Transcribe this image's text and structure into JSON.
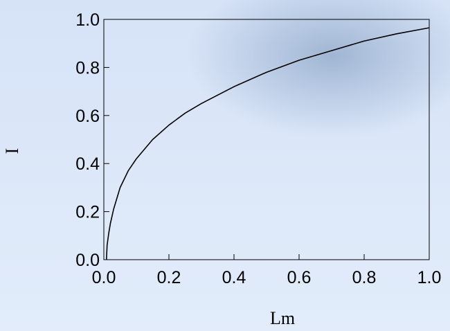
{
  "chart_data": {
    "type": "line",
    "x_label": "Lm",
    "y_label": "I",
    "x": [
      0.008,
      0.01,
      0.015,
      0.02,
      0.03,
      0.05,
      0.075,
      0.1,
      0.15,
      0.2,
      0.25,
      0.3,
      0.4,
      0.5,
      0.6,
      0.7,
      0.8,
      0.9,
      1.0
    ],
    "series": [
      {
        "color": "#000000",
        "values": [
          0.0,
          0.06,
          0.11,
          0.15,
          0.21,
          0.3,
          0.37,
          0.42,
          0.5,
          0.56,
          0.61,
          0.65,
          0.72,
          0.78,
          0.83,
          0.87,
          0.91,
          0.94,
          0.965
        ]
      }
    ],
    "xlim": [
      0,
      1
    ],
    "ylim": [
      0,
      1
    ],
    "xticks": [
      {
        "value": 0,
        "label": "0.0"
      },
      0.2,
      0.4,
      0.6,
      0.8,
      {
        "value": 1,
        "label": "1.0"
      }
    ],
    "yticks": [
      {
        "value": 0,
        "label": "0.0"
      },
      0.2,
      0.4,
      0.6,
      0.8,
      {
        "value": 1,
        "label": "1.0"
      }
    ],
    "grid": false
  }
}
